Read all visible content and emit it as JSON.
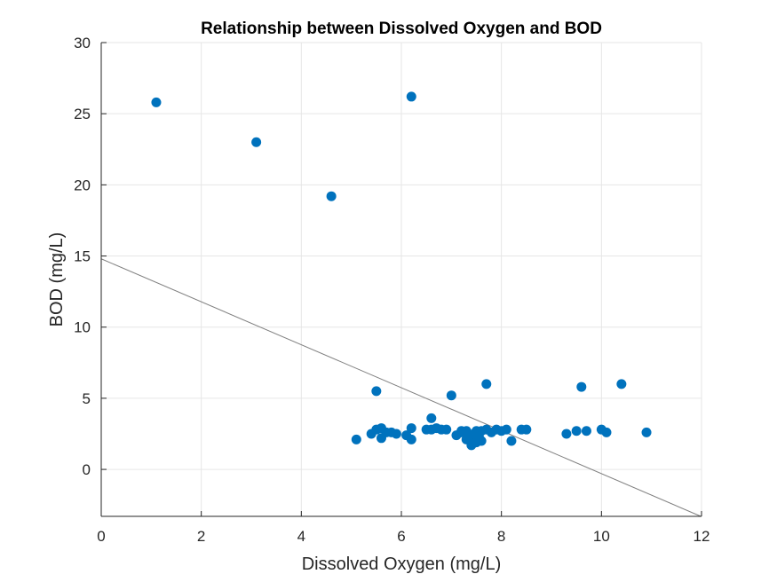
{
  "chart_data": {
    "type": "scatter",
    "title": "Relationship between Dissolved Oxygen and BOD",
    "xlabel": "Dissolved Oxygen (mg/L)",
    "ylabel": "BOD (mg/L)",
    "xlim": [
      0,
      12
    ],
    "ylim": [
      -3.3,
      30
    ],
    "xticks": [
      0,
      2,
      4,
      6,
      8,
      10,
      12
    ],
    "yticks": [
      0,
      5,
      10,
      15,
      20,
      25,
      30
    ],
    "grid": true,
    "colors": {
      "points": "#0072BD",
      "fit_line": "#808080",
      "grid": "#e6e6e6",
      "axes": "#262626"
    },
    "series": [
      {
        "x": [
          1.1,
          3.1,
          4.6,
          6.2,
          5.5,
          7.0,
          7.7,
          9.6,
          10.4,
          5.1,
          5.4,
          5.5,
          5.6,
          5.6,
          5.8,
          5.9,
          6.1,
          6.2,
          6.2,
          6.5,
          6.6,
          6.7,
          6.8,
          6.9,
          7.1,
          7.2,
          7.3,
          7.3,
          7.4,
          7.4,
          7.5,
          7.5,
          7.6,
          7.6,
          7.7,
          7.8,
          7.9,
          8.0,
          8.1,
          8.2,
          8.4,
          8.5,
          9.3,
          9.5,
          9.7,
          10.0,
          10.1,
          10.9,
          6.6,
          7.5,
          7.2,
          7.35,
          5.7,
          7.45,
          7.55
        ],
        "y": [
          25.8,
          23.0,
          19.2,
          26.2,
          5.5,
          5.2,
          6.0,
          5.8,
          6.0,
          2.1,
          2.5,
          2.8,
          2.2,
          2.9,
          2.6,
          2.5,
          2.4,
          2.1,
          2.9,
          2.8,
          2.8,
          2.9,
          2.8,
          2.8,
          2.4,
          2.7,
          2.1,
          2.7,
          1.7,
          2.4,
          2.7,
          2.2,
          2.0,
          2.7,
          2.8,
          2.6,
          2.8,
          2.7,
          2.8,
          2.0,
          2.8,
          2.8,
          2.5,
          2.7,
          2.7,
          2.8,
          2.6,
          2.6,
          3.6,
          1.9,
          2.6,
          2.3,
          2.6,
          2.5,
          2.3
        ]
      }
    ],
    "fit_line": {
      "intercept": 14.8,
      "slope": -1.51
    }
  }
}
